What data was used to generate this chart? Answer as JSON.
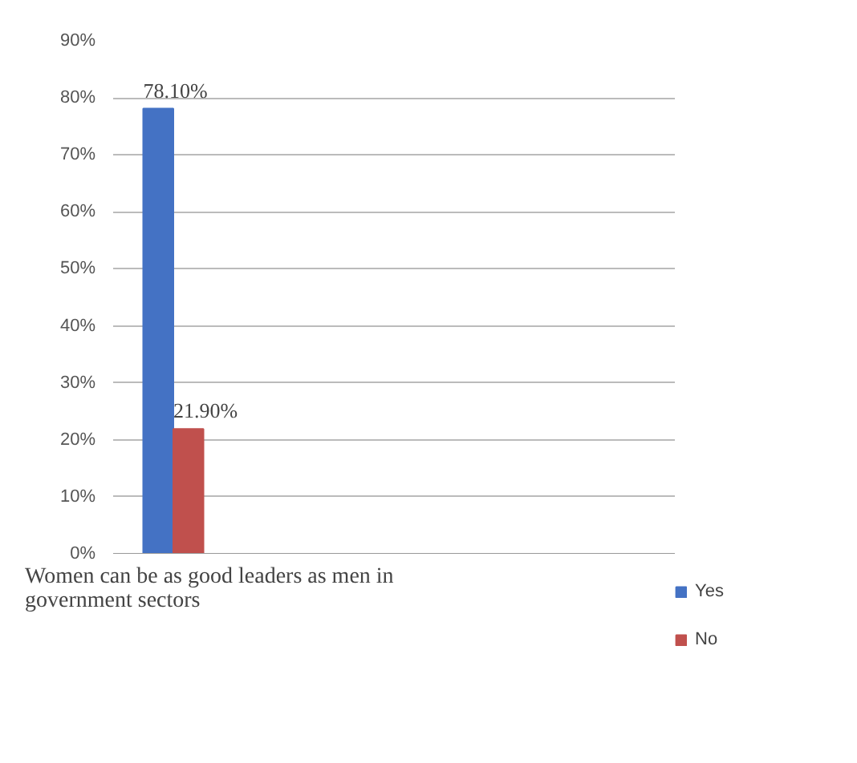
{
  "chart_data": {
    "type": "bar",
    "categories": [
      "Women can be as good leaders  as men in government sectors"
    ],
    "series": [
      {
        "name": "Yes",
        "color": "#4472c4",
        "values": [
          78.1
        ],
        "value_labels": [
          "78.10%"
        ]
      },
      {
        "name": "No",
        "color": "#c0504d",
        "values": [
          21.9
        ],
        "value_labels": [
          "21.90%"
        ]
      }
    ],
    "ylim": [
      0,
      90
    ],
    "yticks": [
      {
        "value": 0,
        "label": "0%"
      },
      {
        "value": 10,
        "label": "10%"
      },
      {
        "value": 20,
        "label": "20%"
      },
      {
        "value": 30,
        "label": "30%"
      },
      {
        "value": 40,
        "label": "40%"
      },
      {
        "value": 50,
        "label": "50%"
      },
      {
        "value": 60,
        "label": "60%"
      },
      {
        "value": 70,
        "label": "70%"
      },
      {
        "value": 80,
        "label": "80%"
      },
      {
        "value": 90,
        "label": "90%"
      }
    ],
    "grid": "y",
    "legend": "bottom right"
  }
}
